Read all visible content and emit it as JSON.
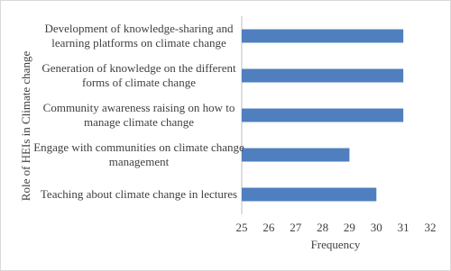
{
  "chart_data": {
    "type": "bar",
    "orientation": "horizontal",
    "x_label": "Frequency",
    "y_label": "Role of HEIs in Climate change",
    "categories": [
      "Development of knowledge-sharing and learning platforms on climate change",
      "Generation of knowledge on the different forms of climate change",
      "Community awareness raising on how to manage climate change",
      "Engage with communities on climate change management",
      "Teaching about climate change in lectures"
    ],
    "values": [
      31,
      31,
      31,
      29,
      30
    ],
    "color": "#4f7fbf",
    "xlim": [
      25,
      32
    ],
    "xticks": [
      25,
      26,
      27,
      28,
      29,
      30,
      31,
      32
    ],
    "grid": false
  }
}
